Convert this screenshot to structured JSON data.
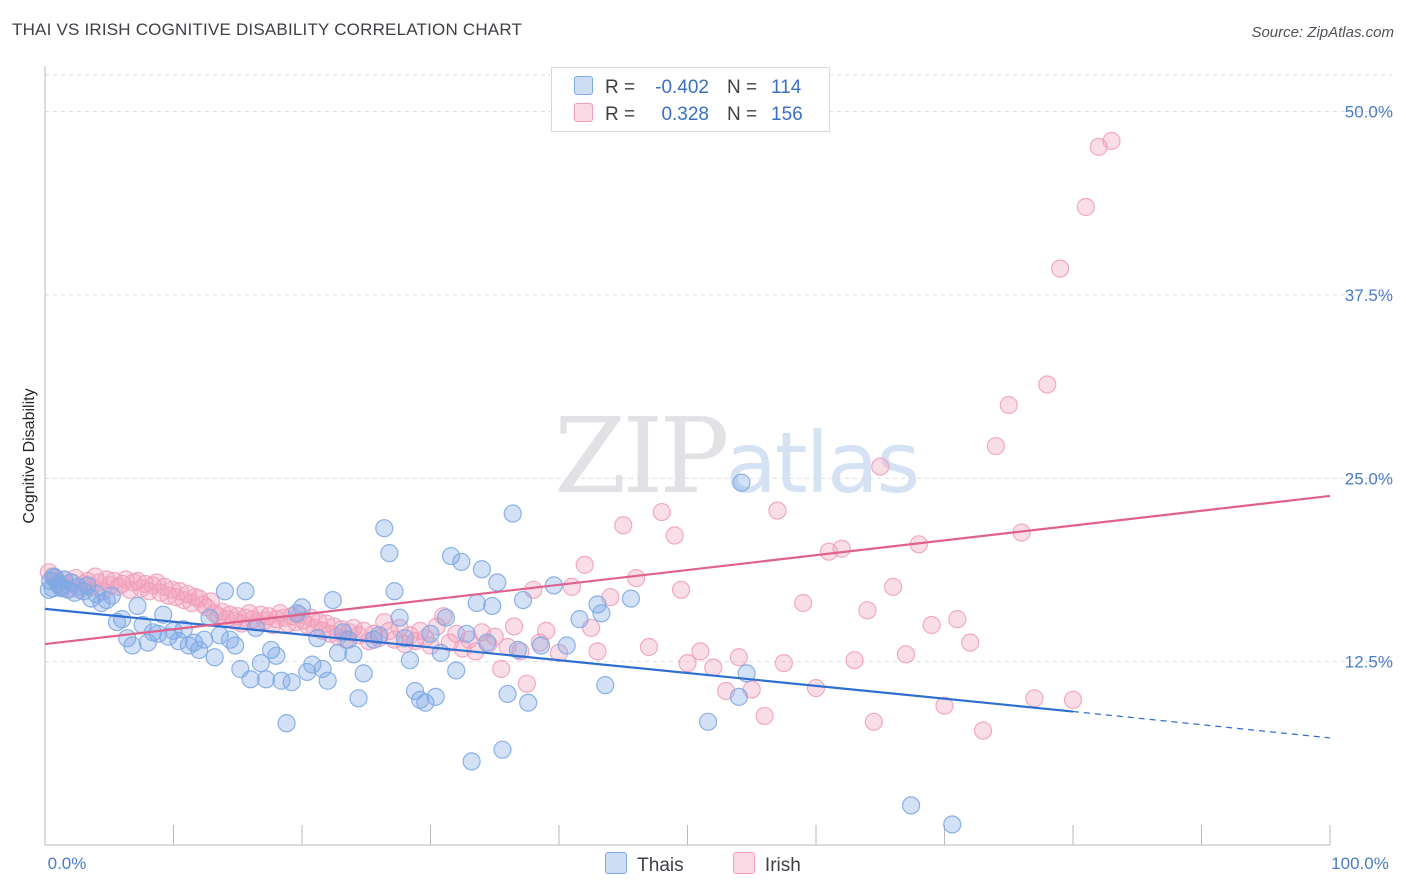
{
  "title": "THAI VS IRISH COGNITIVE DISABILITY CORRELATION CHART",
  "source": "Source: ZipAtlas.com",
  "watermark": {
    "zip": "ZIP",
    "atlas": "atlas"
  },
  "legend": {
    "rows": [
      {
        "r_label": "R =",
        "r_value": "-0.402",
        "n_label": "N =",
        "n_value": "114",
        "color": "#7faae4"
      },
      {
        "r_label": "R =",
        "r_value": "0.328",
        "n_label": "N =",
        "n_value": "156",
        "color": "#f2a0bb"
      }
    ]
  },
  "bottom_legend": [
    "Thais",
    "Irish"
  ],
  "chart_data": {
    "type": "scatter",
    "ylabel": "Cognitive Disability",
    "xlim": [
      0,
      100
    ],
    "ylim": [
      0,
      50
    ],
    "x_ticks": [
      "0.0%",
      "100.0%"
    ],
    "y_ticks": [
      {
        "value": 12.5,
        "label": "12.5%"
      },
      {
        "value": 25.0,
        "label": "25.0%"
      },
      {
        "value": 37.5,
        "label": "37.5%"
      },
      {
        "value": 50.0,
        "label": "50.0%"
      }
    ],
    "grid": true,
    "colors": {
      "thais": "#7faae4",
      "irish": "#f2a0bb",
      "thais_line": "#2f6fcf",
      "irish_line": "#e0608e"
    },
    "series": [
      {
        "name": "Thais",
        "trend": {
          "x0": 0,
          "y0": 16.1,
          "x1": 80,
          "y1": 9.1,
          "dash_to_x": 100,
          "dash_to_y": 7.3
        },
        "points": [
          [
            0.4,
            18.0
          ],
          [
            0.6,
            17.5
          ],
          [
            0.8,
            18.2
          ],
          [
            1.0,
            17.8
          ],
          [
            1.2,
            17.6
          ],
          [
            1.5,
            18.1
          ],
          [
            1.8,
            17.4
          ],
          [
            2.0,
            17.9
          ],
          [
            2.3,
            17.2
          ],
          [
            2.6,
            17.6
          ],
          [
            3.0,
            17.3
          ],
          [
            3.3,
            17.7
          ],
          [
            3.6,
            16.8
          ],
          [
            4.0,
            17.1
          ],
          [
            4.4,
            16.5
          ],
          [
            4.8,
            16.7
          ],
          [
            5.2,
            17.0
          ],
          [
            5.6,
            15.2
          ],
          [
            6.0,
            15.4
          ],
          [
            6.4,
            14.1
          ],
          [
            6.8,
            13.6
          ],
          [
            7.2,
            16.3
          ],
          [
            7.6,
            15.0
          ],
          [
            8.0,
            13.8
          ],
          [
            8.4,
            14.5
          ],
          [
            8.8,
            14.4
          ],
          [
            9.2,
            15.7
          ],
          [
            9.6,
            14.2
          ],
          [
            10.0,
            14.6
          ],
          [
            10.4,
            13.9
          ],
          [
            10.8,
            14.7
          ],
          [
            11.2,
            13.6
          ],
          [
            11.6,
            13.8
          ],
          [
            12.0,
            13.3
          ],
          [
            12.4,
            14.0
          ],
          [
            12.8,
            15.5
          ],
          [
            13.2,
            12.8
          ],
          [
            13.6,
            14.3
          ],
          [
            14.0,
            17.3
          ],
          [
            14.4,
            14.0
          ],
          [
            14.8,
            13.6
          ],
          [
            15.2,
            12.0
          ],
          [
            15.6,
            17.3
          ],
          [
            16.0,
            11.3
          ],
          [
            16.4,
            14.8
          ],
          [
            16.8,
            12.4
          ],
          [
            17.2,
            11.3
          ],
          [
            17.6,
            13.3
          ],
          [
            18.0,
            12.9
          ],
          [
            18.4,
            11.2
          ],
          [
            18.8,
            8.3
          ],
          [
            19.2,
            11.1
          ],
          [
            19.6,
            15.8
          ],
          [
            20.0,
            16.2
          ],
          [
            20.4,
            11.8
          ],
          [
            20.8,
            12.3
          ],
          [
            21.2,
            14.1
          ],
          [
            21.6,
            12.0
          ],
          [
            22.0,
            11.2
          ],
          [
            22.4,
            16.7
          ],
          [
            22.8,
            13.1
          ],
          [
            23.2,
            14.5
          ],
          [
            23.6,
            14.0
          ],
          [
            24.0,
            13.0
          ],
          [
            24.4,
            10.0
          ],
          [
            24.8,
            11.7
          ],
          [
            25.6,
            14.0
          ],
          [
            26.0,
            14.3
          ],
          [
            26.4,
            21.6
          ],
          [
            26.8,
            19.9
          ],
          [
            27.2,
            17.3
          ],
          [
            27.6,
            15.5
          ],
          [
            28.0,
            14.1
          ],
          [
            28.4,
            12.6
          ],
          [
            28.8,
            10.5
          ],
          [
            29.2,
            9.9
          ],
          [
            29.6,
            9.7
          ],
          [
            30.0,
            14.4
          ],
          [
            30.4,
            10.1
          ],
          [
            30.8,
            13.1
          ],
          [
            31.2,
            15.5
          ],
          [
            31.6,
            19.7
          ],
          [
            32.0,
            11.9
          ],
          [
            32.4,
            19.3
          ],
          [
            32.8,
            14.4
          ],
          [
            33.2,
            5.7
          ],
          [
            33.6,
            16.5
          ],
          [
            34.0,
            18.8
          ],
          [
            34.4,
            13.8
          ],
          [
            34.8,
            16.3
          ],
          [
            35.2,
            17.9
          ],
          [
            35.6,
            6.5
          ],
          [
            36.0,
            10.3
          ],
          [
            36.4,
            22.6
          ],
          [
            36.8,
            13.3
          ],
          [
            37.2,
            16.7
          ],
          [
            37.6,
            9.7
          ],
          [
            38.6,
            13.6
          ],
          [
            39.6,
            17.7
          ],
          [
            40.6,
            13.6
          ],
          [
            41.6,
            15.4
          ],
          [
            43.0,
            16.4
          ],
          [
            43.3,
            15.8
          ],
          [
            43.6,
            10.9
          ],
          [
            45.6,
            16.8
          ],
          [
            51.6,
            8.4
          ],
          [
            54.0,
            10.1
          ],
          [
            54.2,
            24.7
          ],
          [
            54.6,
            11.7
          ],
          [
            67.4,
            2.7
          ],
          [
            70.6,
            1.4
          ],
          [
            0.3,
            17.4
          ],
          [
            0.7,
            18.3
          ],
          [
            1.3,
            17.5
          ]
        ]
      },
      {
        "name": "Irish",
        "trend": {
          "x0": 0,
          "y0": 13.7,
          "x1": 100,
          "y1": 23.8
        },
        "points": [
          [
            0.3,
            18.6
          ],
          [
            0.6,
            18.3
          ],
          [
            0.9,
            18.0
          ],
          [
            1.2,
            17.7
          ],
          [
            1.5,
            18.1
          ],
          [
            1.8,
            17.5
          ],
          [
            2.1,
            17.9
          ],
          [
            2.4,
            18.2
          ],
          [
            2.7,
            17.4
          ],
          [
            3.0,
            17.8
          ],
          [
            3.3,
            18.0
          ],
          [
            3.6,
            17.6
          ],
          [
            3.9,
            18.3
          ],
          [
            4.2,
            17.9
          ],
          [
            4.5,
            17.3
          ],
          [
            4.8,
            18.1
          ],
          [
            5.1,
            17.7
          ],
          [
            5.4,
            18.0
          ],
          [
            5.7,
            17.6
          ],
          [
            6.0,
            17.8
          ],
          [
            6.3,
            18.1
          ],
          [
            6.6,
            17.4
          ],
          [
            6.9,
            17.9
          ],
          [
            7.2,
            18.0
          ],
          [
            7.5,
            17.5
          ],
          [
            7.8,
            17.8
          ],
          [
            8.1,
            17.3
          ],
          [
            8.4,
            17.7
          ],
          [
            8.7,
            17.9
          ],
          [
            9.0,
            17.2
          ],
          [
            9.3,
            17.6
          ],
          [
            9.6,
            17.0
          ],
          [
            9.9,
            17.4
          ],
          [
            10.2,
            16.9
          ],
          [
            10.5,
            17.3
          ],
          [
            10.8,
            16.7
          ],
          [
            11.1,
            17.1
          ],
          [
            11.4,
            16.5
          ],
          [
            11.7,
            16.9
          ],
          [
            12.0,
            16.8
          ],
          [
            12.3,
            16.4
          ],
          [
            12.6,
            16.2
          ],
          [
            12.9,
            16.6
          ],
          [
            13.2,
            15.8
          ],
          [
            13.5,
            15.6
          ],
          [
            13.8,
            15.9
          ],
          [
            14.1,
            15.4
          ],
          [
            14.4,
            15.7
          ],
          [
            14.7,
            15.3
          ],
          [
            15.0,
            15.6
          ],
          [
            15.3,
            15.1
          ],
          [
            15.6,
            15.5
          ],
          [
            15.9,
            15.8
          ],
          [
            16.2,
            15.4
          ],
          [
            16.5,
            15.2
          ],
          [
            16.8,
            15.7
          ],
          [
            17.1,
            15.3
          ],
          [
            17.4,
            15.6
          ],
          [
            17.7,
            15.0
          ],
          [
            18.0,
            15.4
          ],
          [
            18.3,
            15.8
          ],
          [
            18.6,
            15.5
          ],
          [
            18.9,
            15.1
          ],
          [
            19.2,
            15.6
          ],
          [
            19.5,
            15.2
          ],
          [
            19.8,
            15.7
          ],
          [
            20.1,
            15.3
          ],
          [
            20.4,
            15.0
          ],
          [
            20.7,
            15.5
          ],
          [
            21.0,
            14.8
          ],
          [
            21.3,
            15.2
          ],
          [
            21.6,
            14.6
          ],
          [
            21.9,
            15.1
          ],
          [
            22.2,
            14.4
          ],
          [
            22.5,
            14.9
          ],
          [
            22.8,
            14.2
          ],
          [
            23.1,
            14.7
          ],
          [
            23.4,
            14.0
          ],
          [
            23.7,
            14.5
          ],
          [
            24.0,
            14.8
          ],
          [
            24.4,
            14.3
          ],
          [
            24.8,
            14.6
          ],
          [
            25.2,
            13.9
          ],
          [
            25.6,
            14.4
          ],
          [
            26.0,
            14.1
          ],
          [
            26.4,
            15.2
          ],
          [
            26.8,
            14.6
          ],
          [
            27.2,
            14.0
          ],
          [
            27.6,
            14.8
          ],
          [
            28.0,
            13.7
          ],
          [
            28.4,
            14.3
          ],
          [
            28.8,
            13.9
          ],
          [
            29.2,
            14.6
          ],
          [
            29.6,
            14.1
          ],
          [
            30.0,
            13.6
          ],
          [
            30.5,
            14.9
          ],
          [
            31.0,
            15.6
          ],
          [
            31.5,
            13.8
          ],
          [
            32.0,
            14.4
          ],
          [
            32.5,
            13.4
          ],
          [
            33.0,
            14.0
          ],
          [
            33.5,
            13.2
          ],
          [
            34.0,
            14.5
          ],
          [
            34.5,
            13.7
          ],
          [
            35.0,
            14.2
          ],
          [
            35.5,
            12.0
          ],
          [
            36.0,
            13.5
          ],
          [
            36.5,
            14.9
          ],
          [
            37.0,
            13.2
          ],
          [
            37.5,
            11.0
          ],
          [
            38.0,
            17.4
          ],
          [
            38.5,
            13.8
          ],
          [
            39.0,
            14.6
          ],
          [
            40.0,
            13.1
          ],
          [
            41.0,
            17.6
          ],
          [
            42.0,
            19.1
          ],
          [
            42.5,
            14.8
          ],
          [
            43.0,
            13.2
          ],
          [
            44.0,
            16.9
          ],
          [
            45.0,
            21.8
          ],
          [
            46.0,
            18.2
          ],
          [
            47.0,
            13.5
          ],
          [
            48.0,
            22.7
          ],
          [
            49.0,
            21.1
          ],
          [
            49.5,
            17.4
          ],
          [
            50.0,
            12.4
          ],
          [
            51.0,
            13.2
          ],
          [
            52.0,
            12.1
          ],
          [
            53.0,
            10.5
          ],
          [
            54.0,
            12.8
          ],
          [
            55.0,
            10.6
          ],
          [
            56.0,
            8.8
          ],
          [
            57.0,
            22.8
          ],
          [
            57.5,
            12.4
          ],
          [
            59.0,
            16.5
          ],
          [
            60.0,
            10.7
          ],
          [
            61.0,
            20.0
          ],
          [
            62.0,
            20.2
          ],
          [
            63.0,
            12.6
          ],
          [
            64.0,
            16.0
          ],
          [
            64.5,
            8.4
          ],
          [
            65.0,
            25.8
          ],
          [
            66.0,
            17.6
          ],
          [
            67.0,
            13.0
          ],
          [
            68.0,
            20.5
          ],
          [
            69.0,
            15.0
          ],
          [
            70.0,
            9.5
          ],
          [
            71.0,
            15.4
          ],
          [
            72.0,
            13.8
          ],
          [
            73.0,
            7.8
          ],
          [
            74.0,
            27.2
          ],
          [
            75.0,
            30.0
          ],
          [
            76.0,
            21.3
          ],
          [
            77.0,
            10.0
          ],
          [
            78.0,
            31.4
          ],
          [
            79.0,
            39.3
          ],
          [
            80.0,
            9.9
          ],
          [
            81.0,
            43.5
          ],
          [
            82.0,
            47.6
          ],
          [
            83.0,
            48.0
          ]
        ]
      }
    ]
  }
}
